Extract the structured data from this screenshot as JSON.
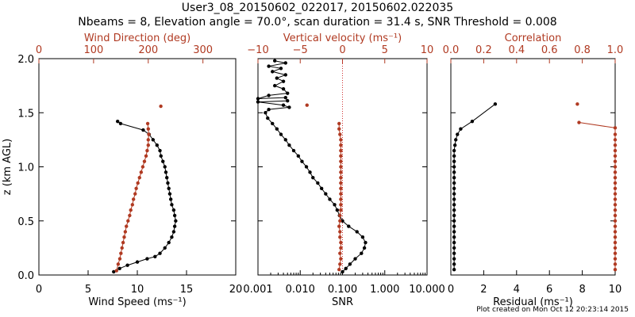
{
  "title_line1": "User3_08_20150602_022017, 20150602.022035",
  "title_line2": "Nbeams = 8, Elevation angle = 70.0°, scan duration = 31.4 s, SNR Threshold = 0.008",
  "footer": "Plot created on Mon Oct 12 20:23:14 2015",
  "colors": {
    "primary": "#000000",
    "secondary": "#b03a22",
    "reference_line": "#d03030"
  },
  "chart_data": [
    {
      "type": "scatter",
      "ylabel": "z (km AGL)",
      "ylim": [
        0,
        2
      ],
      "yticks": [
        "0.0",
        "0.5",
        "1.0",
        "1.5",
        "2.0"
      ],
      "xlabel_bottom": "Wind Speed (ms⁻¹)",
      "xlim_bottom": [
        0,
        20
      ],
      "xticks_bottom": [
        "0",
        "5",
        "10",
        "15",
        "20"
      ],
      "xlabel_top": "Wind Direction (deg)",
      "xlim_top": [
        0,
        360
      ],
      "xticks_top": [
        "0",
        "100",
        "200",
        "300"
      ],
      "series": [
        {
          "axis": "bottom",
          "color": "#000000",
          "points": [
            [
              7.6,
              0.03
            ],
            [
              8.2,
              0.06
            ],
            [
              9.0,
              0.09
            ],
            [
              10.0,
              0.12
            ],
            [
              11.0,
              0.15
            ],
            [
              11.8,
              0.17
            ],
            [
              12.3,
              0.2
            ],
            [
              12.8,
              0.25
            ],
            [
              13.2,
              0.3
            ],
            [
              13.5,
              0.35
            ],
            [
              13.7,
              0.4
            ],
            [
              13.8,
              0.45
            ],
            [
              13.9,
              0.5
            ],
            [
              13.8,
              0.55
            ],
            [
              13.7,
              0.6
            ],
            [
              13.5,
              0.65
            ],
            [
              13.4,
              0.7
            ],
            [
              13.3,
              0.75
            ],
            [
              13.2,
              0.8
            ],
            [
              13.1,
              0.85
            ],
            [
              13.0,
              0.9
            ],
            [
              12.9,
              0.95
            ],
            [
              12.8,
              1.0
            ],
            [
              12.6,
              1.05
            ],
            [
              12.4,
              1.1
            ],
            [
              12.3,
              1.15
            ],
            [
              12.0,
              1.2
            ],
            [
              11.6,
              1.25
            ],
            [
              11.2,
              1.3
            ],
            [
              10.6,
              1.34
            ],
            [
              8.3,
              1.4
            ],
            [
              8.0,
              1.42
            ]
          ]
        },
        {
          "axis": "top",
          "color": "#b03a22",
          "points": [
            [
              142,
              0.04
            ],
            [
              145,
              0.1
            ],
            [
              148,
              0.15
            ],
            [
              150,
              0.2
            ],
            [
              152,
              0.25
            ],
            [
              154,
              0.3
            ],
            [
              156,
              0.35
            ],
            [
              158,
              0.4
            ],
            [
              160,
              0.45
            ],
            [
              163,
              0.5
            ],
            [
              166,
              0.55
            ],
            [
              168,
              0.6
            ],
            [
              171,
              0.65
            ],
            [
              173,
              0.7
            ],
            [
              176,
              0.75
            ],
            [
              178,
              0.8
            ],
            [
              181,
              0.85
            ],
            [
              184,
              0.9
            ],
            [
              187,
              0.95
            ],
            [
              190,
              1.0
            ],
            [
              193,
              1.05
            ],
            [
              196,
              1.1
            ],
            [
              198,
              1.15
            ],
            [
              200,
              1.2
            ],
            [
              200,
              1.25
            ],
            [
              201,
              1.3
            ],
            [
              200,
              1.35
            ],
            [
              199,
              1.4
            ],
            [
              223,
              1.56
            ]
          ]
        }
      ]
    },
    {
      "type": "scatter",
      "xlabel_bottom": "SNR",
      "xscale_bottom": "log",
      "xlim_bottom": [
        0.001,
        10
      ],
      "xticks_bottom": [
        "0.001",
        "0.010",
        "0.100",
        "1.000",
        "10.000"
      ],
      "xlabel_top": "Vertical velocity (ms⁻¹)",
      "xlim_top": [
        -10,
        10
      ],
      "xticks_top": [
        "−10",
        "−5",
        "0",
        "5",
        "10"
      ],
      "reference_line_top": 0,
      "series": [
        {
          "axis": "bottom",
          "color": "#000000",
          "points": [
            [
              0.1,
              0.03
            ],
            [
              0.12,
              0.06
            ],
            [
              0.15,
              0.1
            ],
            [
              0.2,
              0.15
            ],
            [
              0.28,
              0.2
            ],
            [
              0.33,
              0.25
            ],
            [
              0.35,
              0.3
            ],
            [
              0.3,
              0.35
            ],
            [
              0.22,
              0.4
            ],
            [
              0.14,
              0.45
            ],
            [
              0.1,
              0.5
            ],
            [
              0.085,
              0.55
            ],
            [
              0.075,
              0.6
            ],
            [
              0.065,
              0.65
            ],
            [
              0.05,
              0.7
            ],
            [
              0.04,
              0.75
            ],
            [
              0.032,
              0.8
            ],
            [
              0.026,
              0.85
            ],
            [
              0.02,
              0.9
            ],
            [
              0.017,
              0.95
            ],
            [
              0.014,
              1.0
            ],
            [
              0.011,
              1.05
            ],
            [
              0.009,
              1.1
            ],
            [
              0.007,
              1.15
            ],
            [
              0.0055,
              1.2
            ],
            [
              0.0045,
              1.25
            ],
            [
              0.0035,
              1.3
            ],
            [
              0.0028,
              1.35
            ],
            [
              0.0022,
              1.4
            ],
            [
              0.0017,
              1.45
            ],
            [
              0.0015,
              1.5
            ],
            [
              0.0018,
              1.53
            ],
            [
              0.0055,
              1.55
            ],
            [
              0.004,
              1.57
            ],
            [
              0.001,
              1.6
            ],
            [
              0.005,
              1.61
            ],
            [
              0.0045,
              1.64
            ],
            [
              0.001,
              1.63
            ],
            [
              0.0018,
              1.66
            ],
            [
              0.005,
              1.68
            ],
            [
              0.004,
              1.72
            ],
            [
              0.0025,
              1.75
            ],
            [
              0.004,
              1.79
            ],
            [
              0.0028,
              1.82
            ],
            [
              0.0045,
              1.85
            ],
            [
              0.0022,
              1.88
            ],
            [
              0.0035,
              1.91
            ],
            [
              0.0018,
              1.93
            ],
            [
              0.0045,
              1.96
            ],
            [
              0.0025,
              1.98
            ]
          ]
        },
        {
          "axis": "top",
          "color": "#b03a22",
          "points": [
            [
              -0.4,
              0.05
            ],
            [
              -0.3,
              0.1
            ],
            [
              -0.2,
              0.15
            ],
            [
              -0.3,
              0.2
            ],
            [
              -0.2,
              0.25
            ],
            [
              -0.2,
              0.3
            ],
            [
              -0.3,
              0.35
            ],
            [
              -0.3,
              0.4
            ],
            [
              -0.4,
              0.45
            ],
            [
              -0.3,
              0.5
            ],
            [
              -0.3,
              0.55
            ],
            [
              -0.2,
              0.6
            ],
            [
              -0.2,
              0.65
            ],
            [
              -0.2,
              0.7
            ],
            [
              -0.2,
              0.75
            ],
            [
              -0.2,
              0.8
            ],
            [
              -0.2,
              0.85
            ],
            [
              -0.2,
              0.9
            ],
            [
              -0.2,
              0.95
            ],
            [
              -0.2,
              1.0
            ],
            [
              -0.2,
              1.05
            ],
            [
              -0.2,
              1.1
            ],
            [
              -0.2,
              1.15
            ],
            [
              -0.2,
              1.2
            ],
            [
              -0.2,
              1.25
            ],
            [
              -0.3,
              1.3
            ],
            [
              -0.4,
              1.35
            ],
            [
              -0.4,
              1.4
            ],
            [
              -4.2,
              1.57
            ]
          ]
        }
      ]
    },
    {
      "type": "scatter",
      "xlabel_bottom": "Residual (ms⁻¹)",
      "xlim_bottom": [
        0,
        10
      ],
      "xticks_bottom": [
        "0",
        "2",
        "4",
        "6",
        "8",
        "10"
      ],
      "xlabel_top": "Correlation",
      "xlim_top": [
        0,
        1
      ],
      "xticks_top": [
        "0.0",
        "0.2",
        "0.4",
        "0.6",
        "0.8",
        "1.0"
      ],
      "series": [
        {
          "axis": "bottom",
          "color": "#000000",
          "points": [
            [
              0.2,
              0.05
            ],
            [
              0.2,
              0.1
            ],
            [
              0.2,
              0.15
            ],
            [
              0.2,
              0.2
            ],
            [
              0.2,
              0.25
            ],
            [
              0.2,
              0.3
            ],
            [
              0.2,
              0.35
            ],
            [
              0.2,
              0.4
            ],
            [
              0.2,
              0.45
            ],
            [
              0.2,
              0.5
            ],
            [
              0.2,
              0.55
            ],
            [
              0.2,
              0.6
            ],
            [
              0.2,
              0.65
            ],
            [
              0.2,
              0.7
            ],
            [
              0.2,
              0.75
            ],
            [
              0.2,
              0.8
            ],
            [
              0.2,
              0.85
            ],
            [
              0.2,
              0.9
            ],
            [
              0.2,
              0.95
            ],
            [
              0.2,
              1.0
            ],
            [
              0.2,
              1.05
            ],
            [
              0.2,
              1.1
            ],
            [
              0.2,
              1.15
            ],
            [
              0.25,
              1.2
            ],
            [
              0.3,
              1.25
            ],
            [
              0.4,
              1.3
            ],
            [
              0.6,
              1.35
            ],
            [
              1.3,
              1.42
            ],
            [
              2.7,
              1.58
            ]
          ]
        },
        {
          "axis": "top",
          "color": "#b03a22",
          "points": [
            [
              1.0,
              0.05
            ],
            [
              1.0,
              0.1
            ],
            [
              1.0,
              0.15
            ],
            [
              1.0,
              0.2
            ],
            [
              1.0,
              0.25
            ],
            [
              1.0,
              0.3
            ],
            [
              1.0,
              0.35
            ],
            [
              1.0,
              0.4
            ],
            [
              1.0,
              0.45
            ],
            [
              1.0,
              0.5
            ],
            [
              1.0,
              0.55
            ],
            [
              1.0,
              0.6
            ],
            [
              1.0,
              0.65
            ],
            [
              1.0,
              0.7
            ],
            [
              1.0,
              0.75
            ],
            [
              1.0,
              0.8
            ],
            [
              1.0,
              0.85
            ],
            [
              1.0,
              0.9
            ],
            [
              1.0,
              0.95
            ],
            [
              1.0,
              1.0
            ],
            [
              1.0,
              1.05
            ],
            [
              1.0,
              1.1
            ],
            [
              1.0,
              1.15
            ],
            [
              1.0,
              1.2
            ],
            [
              1.0,
              1.25
            ],
            [
              1.0,
              1.3
            ],
            [
              1.0,
              1.36
            ],
            [
              0.78,
              1.41
            ],
            [
              0.77,
              1.58
            ]
          ]
        }
      ]
    }
  ]
}
